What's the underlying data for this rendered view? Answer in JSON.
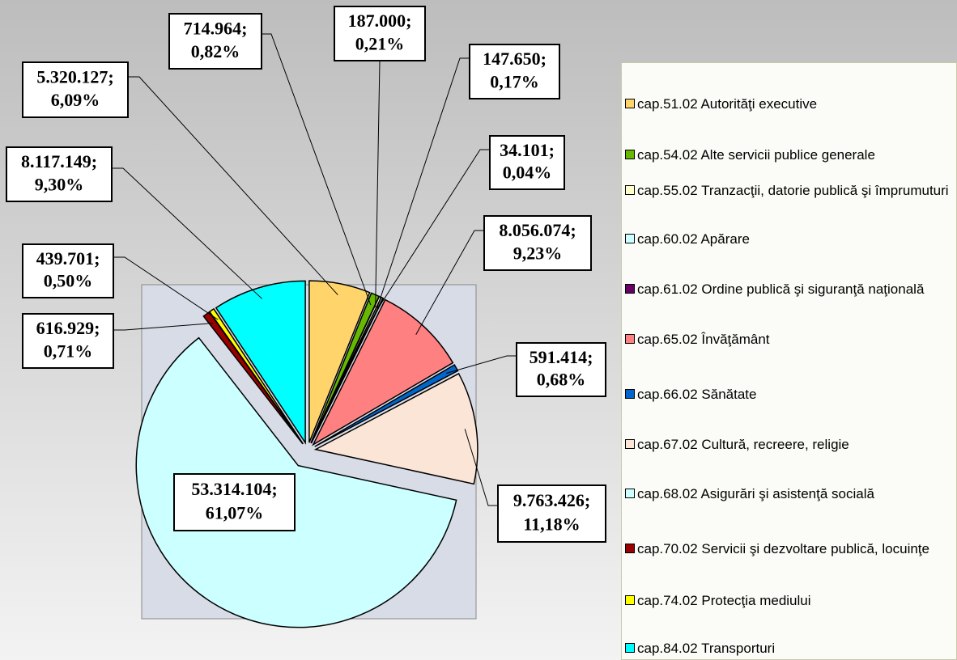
{
  "chart_data": {
    "type": "pie",
    "categories": [
      "cap.51.02 Autorităţi executive",
      "cap.54.02 Alte servicii publice generale",
      "cap.55.02 Tranzacţii, datorie publică şi împrumuturi",
      "cap.60.02 Apărare",
      "cap.61.02 Ordine publică şi siguranţă naţională",
      "cap.65.02 Învăţământ",
      "cap.66.02 Sănătate",
      "cap.67.02 Cultură, recreere, religie",
      "cap.68.02 Asigurări şi asistenţă socială",
      "cap.70.02 Servicii şi dezvoltare publică, locuinţe",
      "cap.74.02 Protecţia mediului",
      "cap.84.02 Transporturi"
    ],
    "values": [
      5320127,
      714964,
      187000,
      147650,
      34101,
      8056074,
      591414,
      9763426,
      53314104,
      616929,
      439701,
      8117149
    ],
    "value_labels": [
      "5.320.127;",
      "714.964;",
      "187.000;",
      "147.650;",
      "34.101;",
      "8.056.074;",
      "591.414;",
      "9.763.426;",
      "53.314.104;",
      "616.929;",
      "439.701;",
      "8.117.149;"
    ],
    "percents": [
      6.09,
      0.82,
      0.21,
      0.17,
      0.04,
      9.23,
      0.68,
      11.18,
      61.07,
      0.71,
      0.5,
      9.3
    ],
    "percent_labels": [
      "6,09%",
      "0,82%",
      "0,21%",
      "0,17%",
      "0,04%",
      "9,23%",
      "0,68%",
      "11,18%",
      "61,07%",
      "0,71%",
      "0,50%",
      "9,30%"
    ],
    "colors": [
      "#ffd46b",
      "#66b800",
      "#ffffcc",
      "#ccffff",
      "#660066",
      "#ff8080",
      "#0066cc",
      "#fbe5d6",
      "#ccffff",
      "#990000",
      "#ffff00",
      "#00ffff"
    ]
  }
}
